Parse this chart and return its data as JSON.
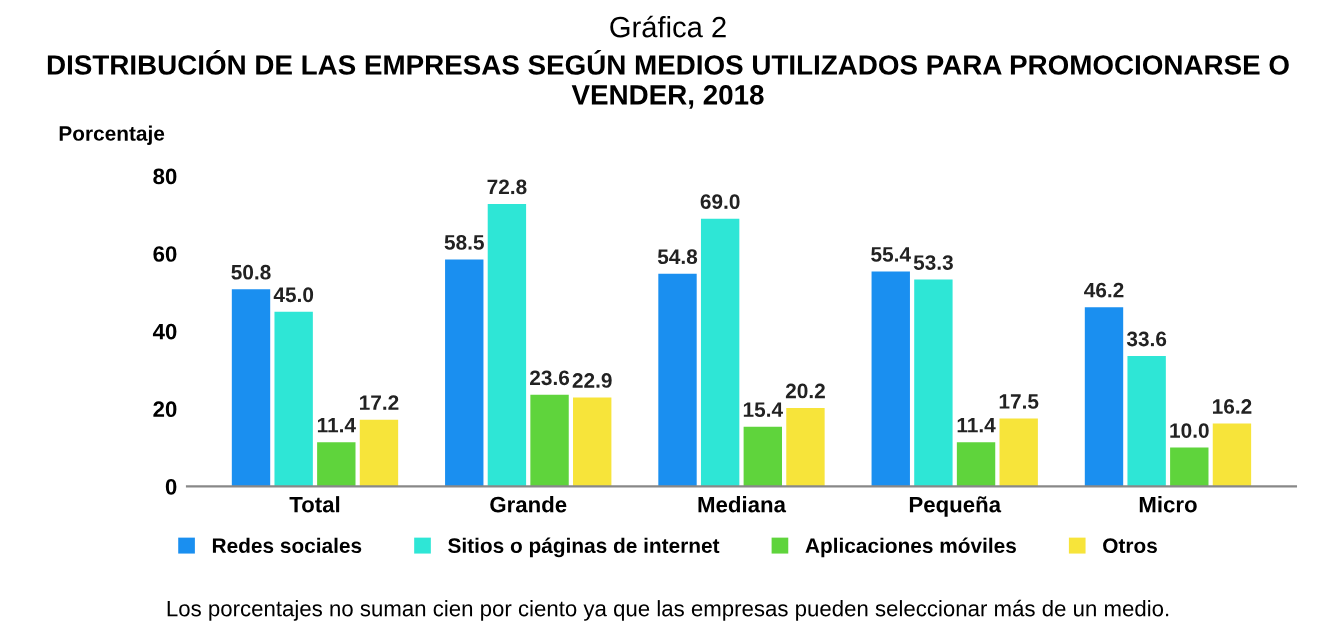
{
  "chart_data": {
    "type": "bar",
    "title": "Gráfica 2",
    "subtitle": "DISTRIBUCIÓN DE LAS EMPRESAS SEGÚN MEDIOS UTILIZADOS PARA PROMOCIONARSE O VENDER, 2018",
    "ylabel": "Porcentaje",
    "categories": [
      "Total",
      "Grande",
      "Mediana",
      "Pequeña",
      "Micro"
    ],
    "series": [
      {
        "name": "Redes sociales",
        "color": "#1a8ff0",
        "values": [
          50.8,
          58.5,
          54.8,
          55.4,
          46.2
        ],
        "value_labels": [
          "50.8",
          "58.5",
          "54.8",
          "55.4",
          "46.2"
        ]
      },
      {
        "name": "Sitios o páginas de internet",
        "color": "#2ee6d6",
        "values": [
          45.0,
          72.8,
          69.0,
          53.3,
          33.6
        ],
        "value_labels": [
          "45.0",
          "72.8",
          "69.0",
          "53.3",
          "33.6"
        ]
      },
      {
        "name": "Aplicaciones móviles",
        "color": "#5fd43c",
        "values": [
          11.4,
          23.6,
          15.4,
          11.4,
          10.0
        ],
        "value_labels": [
          "11.4",
          "23.6",
          "15.4",
          "11.4",
          "10.0"
        ]
      },
      {
        "name": "Otros",
        "color": "#f7e43a",
        "values": [
          17.2,
          22.9,
          20.2,
          17.5,
          16.2
        ],
        "value_labels": [
          "17.2",
          "22.9",
          "20.2",
          "17.5",
          "16.2"
        ]
      }
    ],
    "ylim": [
      0,
      80
    ],
    "yticks": [
      0,
      20,
      40,
      60,
      80
    ],
    "grid": false,
    "legend": "bottom",
    "annotations": [
      "Los porcentajes no suman cien por ciento ya que las empresas pueden seleccionar más de un medio."
    ]
  }
}
